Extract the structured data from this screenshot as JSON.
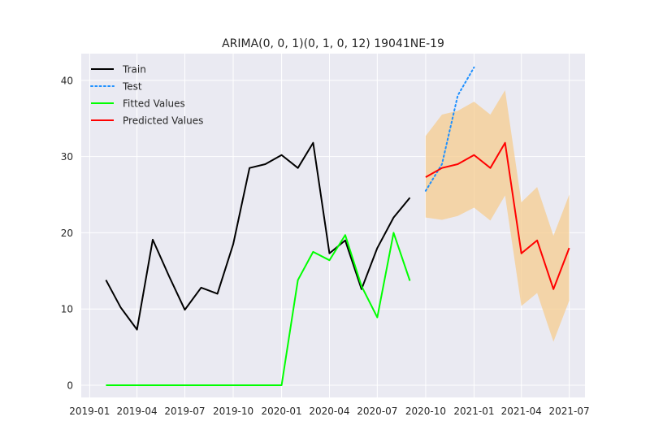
{
  "chart_data": {
    "type": "line",
    "title": "ARIMA(0, 0, 1)(0, 1, 0, 12) 19041NE-19",
    "xlabel": "",
    "ylabel": "",
    "x_ticks": [
      "2019-01",
      "2019-04",
      "2019-07",
      "2019-10",
      "2020-01",
      "2020-04",
      "2020-07",
      "2020-10",
      "2021-01",
      "2021-04",
      "2021-07"
    ],
    "y_ticks": [
      0,
      10,
      20,
      30,
      40
    ],
    "xlim": [
      "2018-12-16",
      "2021-07-31"
    ],
    "ylim": [
      -1.6,
      43.5
    ],
    "grid": true,
    "legend_position": "top-left",
    "series": [
      {
        "name": "Train",
        "color": "#000000",
        "style": "solid",
        "x": [
          "2019-02-01",
          "2019-03-01",
          "2019-04-01",
          "2019-05-01",
          "2019-06-01",
          "2019-07-01",
          "2019-08-01",
          "2019-09-01",
          "2019-10-01",
          "2019-11-01",
          "2019-12-01",
          "2020-01-01",
          "2020-02-01",
          "2020-03-01",
          "2020-04-01",
          "2020-05-01",
          "2020-06-01",
          "2020-07-01",
          "2020-08-01",
          "2020-09-01"
        ],
        "values": [
          13.8,
          10.2,
          7.3,
          19.1,
          14.3,
          9.9,
          12.8,
          12.0,
          18.5,
          28.5,
          29.0,
          30.2,
          28.5,
          31.8,
          17.3,
          19.0,
          12.6,
          18.0,
          22.0,
          24.6
        ]
      },
      {
        "name": "Test",
        "color": "#1e90ff",
        "style": "dotted",
        "x": [
          "2020-10-01",
          "2020-11-01",
          "2020-12-01",
          "2021-01-01"
        ],
        "values": [
          25.5,
          29.0,
          38.0,
          41.7
        ]
      },
      {
        "name": "Fitted Values",
        "color": "#00ff00",
        "style": "solid",
        "x": [
          "2019-02-01",
          "2019-03-01",
          "2019-04-01",
          "2019-05-01",
          "2019-06-01",
          "2019-07-01",
          "2019-08-01",
          "2019-09-01",
          "2019-10-01",
          "2019-11-01",
          "2019-12-01",
          "2020-01-01",
          "2020-02-01",
          "2020-03-01",
          "2020-04-01",
          "2020-05-01",
          "2020-06-01",
          "2020-07-01",
          "2020-08-01",
          "2020-09-01"
        ],
        "values": [
          0,
          0,
          0,
          0,
          0,
          0,
          0,
          0,
          0,
          0,
          0,
          0,
          13.8,
          17.5,
          16.4,
          19.7,
          13.0,
          8.9,
          20.0,
          13.7
        ]
      },
      {
        "name": "Predicted Values",
        "color": "#ff0000",
        "style": "solid",
        "x": [
          "2020-10-01",
          "2020-11-01",
          "2020-12-01",
          "2021-01-01",
          "2021-02-01",
          "2021-03-01",
          "2021-04-01",
          "2021-05-01",
          "2021-06-01",
          "2021-07-01"
        ],
        "values": [
          27.3,
          28.5,
          29.0,
          30.2,
          28.5,
          31.8,
          17.3,
          19.0,
          12.6,
          18.0
        ]
      }
    ],
    "confidence_band": {
      "color": "#f5cc8f",
      "x": [
        "2020-10-01",
        "2020-11-01",
        "2020-12-01",
        "2021-01-01",
        "2021-02-01",
        "2021-03-01",
        "2021-04-01",
        "2021-05-01",
        "2021-06-01",
        "2021-07-01"
      ],
      "upper": [
        32.7,
        35.5,
        36.0,
        37.2,
        35.5,
        38.7,
        24.0,
        26.0,
        19.6,
        25.0
      ],
      "lower": [
        22.0,
        21.7,
        22.2,
        23.3,
        21.6,
        24.9,
        10.4,
        12.1,
        5.7,
        11.1
      ]
    }
  }
}
